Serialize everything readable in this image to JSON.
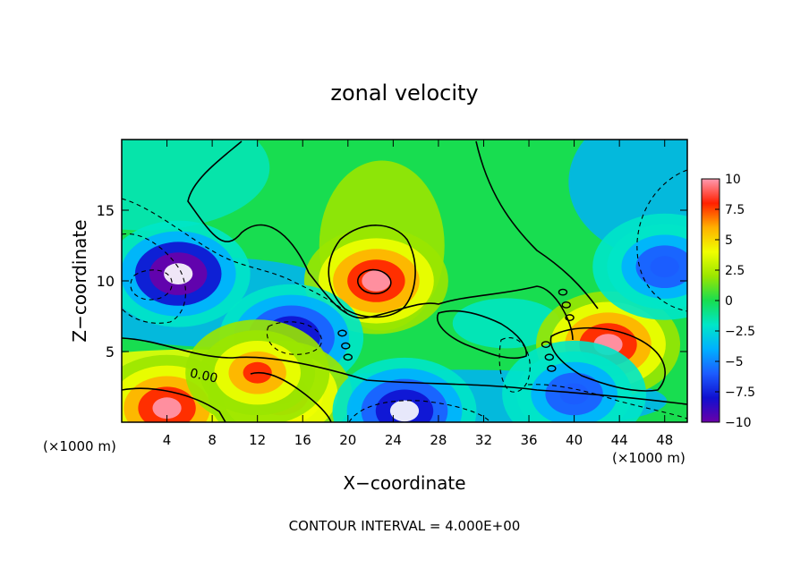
{
  "chart_data": {
    "type": "heatmap",
    "title": "zonal velocity",
    "xlabel": "X−coordinate",
    "ylabel": "Z−coordinate",
    "x_unit": "(×1000 m)",
    "y_unit": "(×1000 m)",
    "xlim": [
      0,
      50
    ],
    "ylim": [
      0,
      20
    ],
    "x_ticks": [
      4,
      8,
      12,
      16,
      20,
      24,
      28,
      32,
      36,
      40,
      44,
      48
    ],
    "y_ticks": [
      5,
      10,
      15
    ],
    "colorbar": {
      "ticks": [
        10,
        7.5,
        5,
        2.5,
        0,
        -2.5,
        -5,
        -7.5,
        -10
      ],
      "tick_labels": [
        "10",
        "7.5",
        "5",
        "2.5",
        "0",
        "−2.5",
        "−5",
        "−7.5",
        "−10"
      ],
      "range": [
        -10,
        10
      ],
      "colors": [
        "#6a00a8",
        "#1010d0",
        "#1c5cff",
        "#00b0ff",
        "#00e6c8",
        "#18dd50",
        "#9ae600",
        "#f0ff00",
        "#ffb000",
        "#ff2000",
        "#ff9ab0"
      ]
    },
    "contour_label": "0.00",
    "contour_interval_text": "CONTOUR INTERVAL = 4.000E+00",
    "features": [
      {
        "x": 22.5,
        "z": 10.0,
        "value": 10
      },
      {
        "x": 5,
        "z": 10.5,
        "value": -12
      },
      {
        "x": 15,
        "z": 6,
        "value": -9
      },
      {
        "x": 43,
        "z": 5.5,
        "value": 9
      },
      {
        "x": 4,
        "z": 1,
        "value": 9
      },
      {
        "x": 14,
        "z": 2,
        "value": 8
      },
      {
        "x": 25,
        "z": 0.8,
        "value": -11
      },
      {
        "x": 48,
        "z": 11,
        "value": -7
      },
      {
        "x": 40,
        "z": 2,
        "value": -7
      },
      {
        "x": 12,
        "z": 3.5,
        "value": 7
      }
    ]
  }
}
